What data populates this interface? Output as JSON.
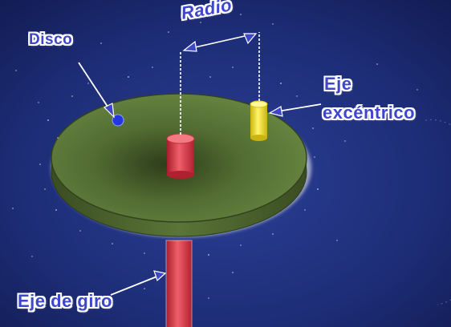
{
  "labels": {
    "disco": "Disco",
    "radio": "Radio",
    "eje_excentrico_line1": "Eje",
    "eje_excentrico_line2": "excéntrico",
    "eje_de_giro": "Eje de giro"
  },
  "colors": {
    "background": "#1b2a6e",
    "disc_top": "#5f7d3a",
    "disc_edge": "#44592a",
    "central_axis": "#e03a48",
    "eccentric_pin": "#f2e21f",
    "disc_dot": "#2436e0",
    "label_text": "#3f47c9",
    "label_outline": "#ffffff"
  }
}
